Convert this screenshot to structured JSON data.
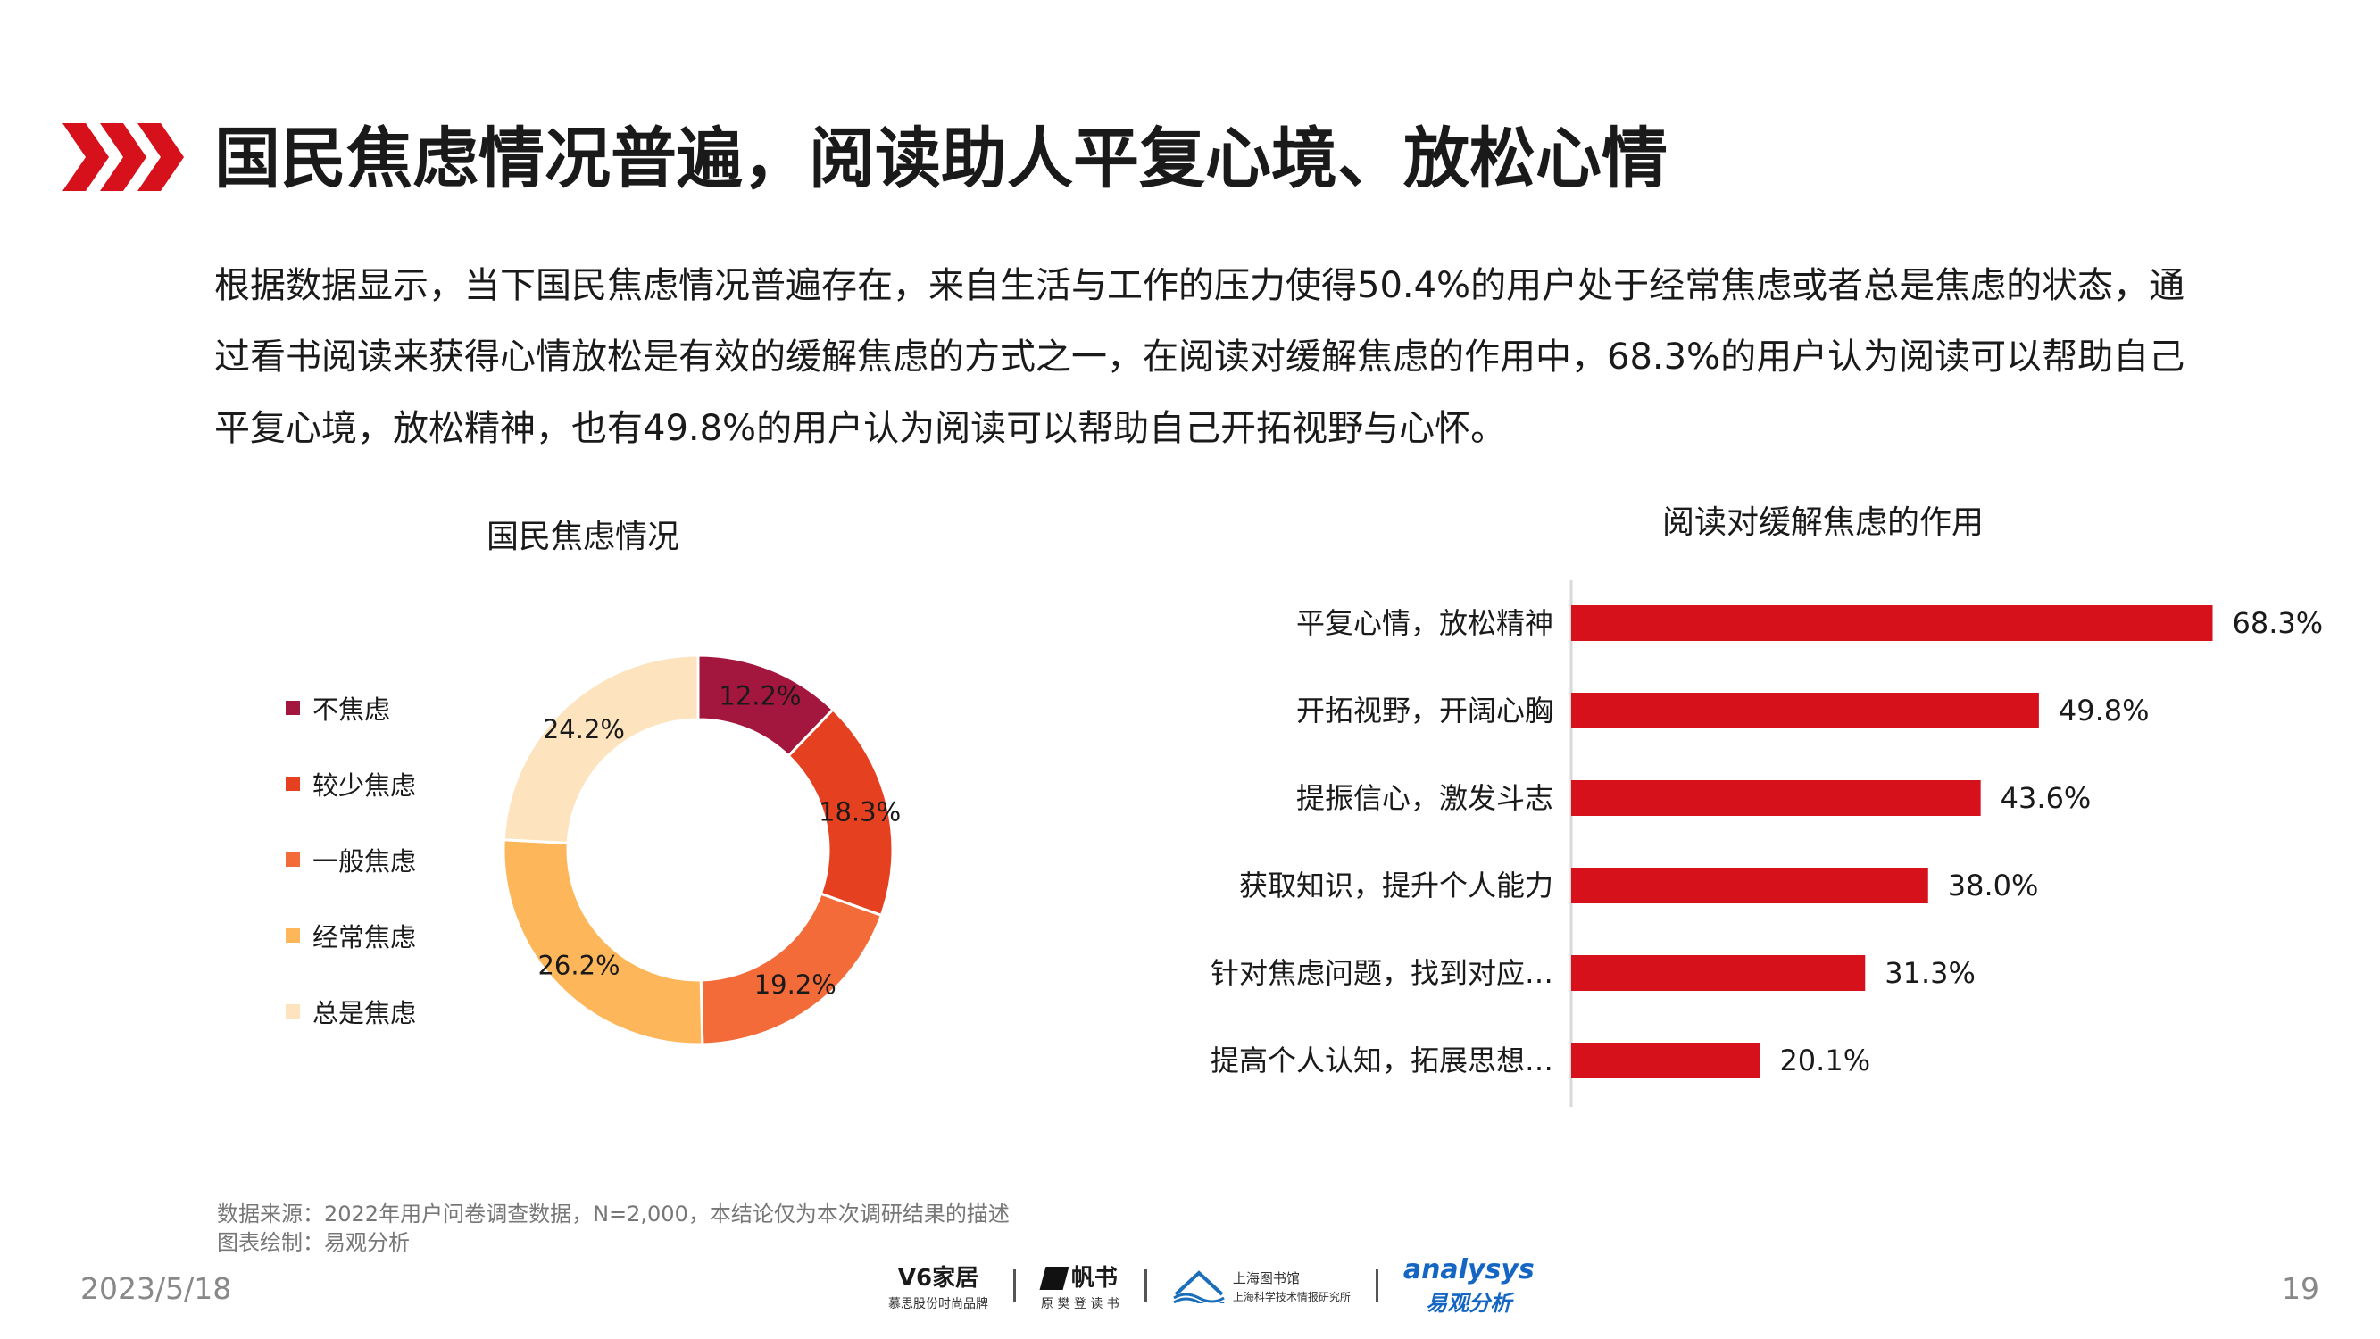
{
  "header": {
    "title": "国民焦虑情况普遍，阅读助人平复心境、放松心情"
  },
  "intro": {
    "text": "根据数据显示，当下国民焦虑情况普遍存在，来自生活与工作的压力使得50.4%的用户处于经常焦虑或者总是焦虑的状态，通过看书阅读来获得心情放松是有效的缓解焦虑的方式之一，在阅读对缓解焦虑的作用中，68.3%的用户认为阅读可以帮助自己平复心境，放松精神，也有49.8%的用户认为阅读可以帮助自己开拓视野与心怀。"
  },
  "chart_data": [
    {
      "type": "pie",
      "title": "国民焦虑情况",
      "donut": true,
      "legend": "left",
      "categories": [
        "不焦虑",
        "较少焦虑",
        "一般焦虑",
        "经常焦虑",
        "总是焦虑"
      ],
      "values": [
        12.2,
        18.3,
        19.2,
        26.2,
        24.2
      ],
      "labels": [
        "12.2%",
        "18.3%",
        "19.2%",
        "26.2%",
        "24.2%"
      ],
      "colors": [
        "#a3163e",
        "#e5401f",
        "#f46b3a",
        "#fdb659",
        "#fde3be"
      ]
    },
    {
      "type": "bar",
      "orientation": "horizontal",
      "title": "阅读对缓解焦虑的作用",
      "categories": [
        "平复心情，放松精神",
        "开拓视野，开阔心胸",
        "提振信心，激发斗志",
        "获取知识，提升个人能力",
        "针对焦虑问题，找到对应…",
        "提高个人认知，拓展思想…"
      ],
      "values": [
        68.3,
        49.8,
        43.6,
        38.0,
        31.3,
        20.1
      ],
      "labels": [
        "68.3%",
        "49.8%",
        "43.6%",
        "38.0%",
        "31.3%",
        "20.1%"
      ],
      "color": "#d7111b",
      "xlim": [
        0,
        100
      ],
      "grid": false
    }
  ],
  "footer": {
    "source": "数据来源：2022年用户问卷调查数据，N=2,000，本结论仅为本次调研结果的描述",
    "credit": "图表绘制：易观分析",
    "date": "2023/5/18",
    "page": "19",
    "logos": {
      "v6_main": "V6家居",
      "v6_sub": "慕思股份时尚品牌",
      "fanshu_main": "帆书",
      "fanshu_sub": "原 樊 登 读 书",
      "library_main": "上海图书馆",
      "library_sub": "上海科学技术情报研究所",
      "analysys_main": "analysys",
      "analysys_sub": "易观分析"
    }
  },
  "colors": {
    "accent": "#d7111b",
    "text": "#1a1a1a",
    "muted": "#888888"
  },
  "icons": {
    "title_marker": "triple-chevron-right-icon"
  }
}
